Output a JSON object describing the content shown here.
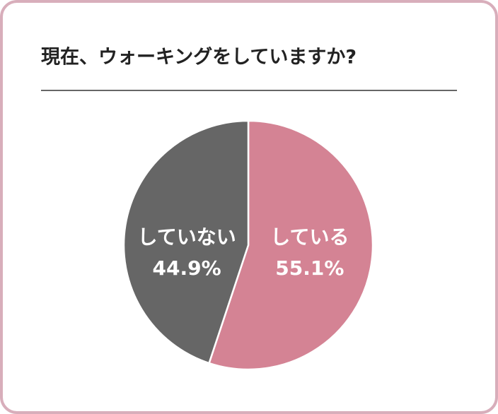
{
  "chart_data": {
    "type": "pie",
    "title": "現在、ウォーキングをしていますか?",
    "categories": [
      "している",
      "していない"
    ],
    "values": [
      55.1,
      44.9
    ],
    "value_labels": [
      "55.1%",
      "44.9%"
    ],
    "colors": [
      "#d48394",
      "#666666"
    ]
  }
}
